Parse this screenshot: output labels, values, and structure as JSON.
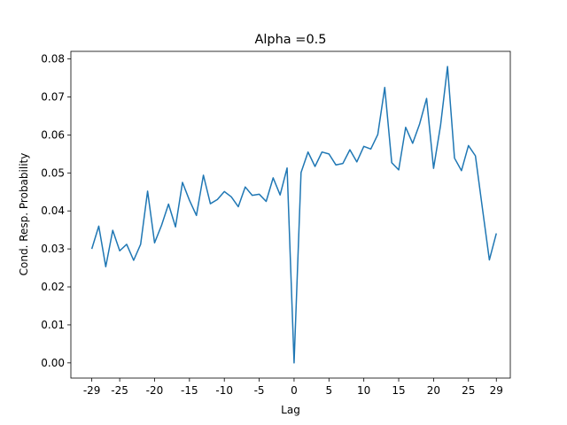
{
  "chart_data": {
    "type": "line",
    "title": "Alpha =0.5",
    "xlabel": "Lag",
    "ylabel": "Cond. Resp. Probability",
    "xlim": [
      -32,
      31
    ],
    "ylim": [
      -0.004,
      0.082
    ],
    "grid": false,
    "legend": "none",
    "x_ticks": [
      {
        "value": -29,
        "label": "-29"
      },
      {
        "value": -25,
        "label": "-25"
      },
      {
        "value": -20,
        "label": "-20"
      },
      {
        "value": -15,
        "label": "-15"
      },
      {
        "value": -10,
        "label": "-10"
      },
      {
        "value": -5,
        "label": "-5"
      },
      {
        "value": 0,
        "label": "0"
      },
      {
        "value": 5,
        "label": "5"
      },
      {
        "value": 10,
        "label": "10"
      },
      {
        "value": 15,
        "label": "15"
      },
      {
        "value": 20,
        "label": "20"
      },
      {
        "value": 25,
        "label": "25"
      },
      {
        "value": 29,
        "label": "29"
      }
    ],
    "y_ticks": [
      {
        "value": 0.0,
        "label": "0.00"
      },
      {
        "value": 0.01,
        "label": "0.01"
      },
      {
        "value": 0.02,
        "label": "0.02"
      },
      {
        "value": 0.03,
        "label": "0.03"
      },
      {
        "value": 0.04,
        "label": "0.04"
      },
      {
        "value": 0.05,
        "label": "0.05"
      },
      {
        "value": 0.06,
        "label": "0.06"
      },
      {
        "value": 0.07,
        "label": "0.07"
      },
      {
        "value": 0.08,
        "label": "0.08"
      }
    ],
    "series": [
      {
        "color": "#1f77b4",
        "x": [
          -29,
          -28,
          -27,
          -26,
          -25,
          -24,
          -23,
          -22,
          -21,
          -20,
          -19,
          -18,
          -17,
          -16,
          -15,
          -14,
          -13,
          -12,
          -11,
          -10,
          -9,
          -8,
          -7,
          -6,
          -5,
          -4,
          -3,
          -2,
          -1,
          0,
          1,
          2,
          3,
          4,
          5,
          6,
          7,
          8,
          9,
          10,
          11,
          12,
          13,
          14,
          15,
          16,
          17,
          18,
          19,
          20,
          21,
          22,
          23,
          24,
          25,
          26,
          27,
          28,
          29
        ],
        "values": [
          0.03,
          0.036,
          0.0253,
          0.0349,
          0.0295,
          0.0312,
          0.027,
          0.0312,
          0.0452,
          0.0316,
          0.0362,
          0.0418,
          0.0358,
          0.0475,
          0.0428,
          0.0388,
          0.0494,
          0.0419,
          0.043,
          0.0451,
          0.0437,
          0.0411,
          0.0463,
          0.0441,
          0.0444,
          0.0425,
          0.0487,
          0.0442,
          0.0513,
          0.0,
          0.0501,
          0.0555,
          0.0517,
          0.0555,
          0.055,
          0.0521,
          0.0525,
          0.0561,
          0.0529,
          0.057,
          0.0563,
          0.0601,
          0.0725,
          0.0527,
          0.0508,
          0.062,
          0.0578,
          0.0629,
          0.0696,
          0.0512,
          0.0625,
          0.078,
          0.0539,
          0.0506,
          0.0572,
          0.0545,
          0.0407,
          0.0271,
          0.0341
        ]
      }
    ]
  }
}
